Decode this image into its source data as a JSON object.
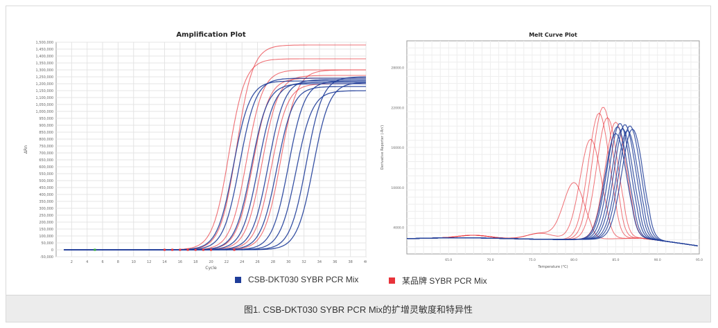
{
  "colors": {
    "blue": "#1f3d99",
    "red": "#e8333a",
    "grid": "#e4e4e4",
    "axis": "#9a9a9a",
    "caption_bg": "#ececec"
  },
  "legend": {
    "blue_label": "CSB-DKT030 SYBR PCR Mix",
    "red_label": "某品牌 SYBR PCR Mix"
  },
  "caption": "图1. CSB-DKT030 SYBR PCR Mix的扩增灵敏度和特异性",
  "chart_data": [
    {
      "type": "line",
      "title": "Amplification Plot",
      "xlabel": "Cycle",
      "ylabel": "ΔRn",
      "xlim": [
        0,
        40
      ],
      "ylim": [
        -50000,
        1500000
      ],
      "x_ticks": [
        2,
        4,
        6,
        8,
        10,
        12,
        14,
        16,
        18,
        20,
        22,
        24,
        26,
        28,
        30,
        32,
        34,
        36,
        38,
        40
      ],
      "y_ticks": [
        -50000,
        0,
        50000,
        100000,
        150000,
        200000,
        250000,
        300000,
        350000,
        400000,
        450000,
        500000,
        550000,
        600000,
        650000,
        700000,
        750000,
        800000,
        850000,
        900000,
        950000,
        1000000,
        1050000,
        1100000,
        1150000,
        1200000,
        1250000,
        1300000,
        1350000,
        1400000,
        1450000,
        1500000
      ],
      "grid": true,
      "series": [
        {
          "color": "red",
          "ct": 22.3,
          "plateau": 1380000
        },
        {
          "color": "red",
          "ct": 23.3,
          "plateau": 1480000
        },
        {
          "color": "red",
          "ct": 24.6,
          "plateau": 1300000
        },
        {
          "color": "red",
          "ct": 25.4,
          "plateau": 1240000
        },
        {
          "color": "red",
          "ct": 26.6,
          "plateau": 1260000
        },
        {
          "color": "red",
          "ct": 27.8,
          "plateau": 1200000
        },
        {
          "color": "red",
          "ct": 29.0,
          "plateau": 1300000
        },
        {
          "color": "blue",
          "ct": 22.9,
          "plateau": 1220000
        },
        {
          "color": "blue",
          "ct": 23.7,
          "plateau": 1240000
        },
        {
          "color": "blue",
          "ct": 25.2,
          "plateau": 1200000
        },
        {
          "color": "blue",
          "ct": 26.1,
          "plateau": 1210000
        },
        {
          "color": "blue",
          "ct": 27.4,
          "plateau": 1230000
        },
        {
          "color": "blue",
          "ct": 28.5,
          "plateau": 1180000
        },
        {
          "color": "blue",
          "ct": 30.0,
          "plateau": 1220000
        },
        {
          "color": "blue",
          "ct": 31.0,
          "plateau": 1150000
        },
        {
          "color": "blue",
          "ct": 32.3,
          "plateau": 1250000
        },
        {
          "color": "blue",
          "ct": 33.2,
          "plateau": 1210000
        }
      ],
      "markers": {
        "red_cycles": [
          14,
          15,
          16,
          17,
          18,
          19,
          20,
          23
        ],
        "green_cycles": [
          5
        ]
      }
    },
    {
      "type": "line",
      "title": "Melt Curve Plot",
      "xlabel": "Temperature (°C)",
      "ylabel": "Derivative Reporter (-Rn')",
      "xlim": [
        60,
        95
      ],
      "ylim": [
        0,
        32000
      ],
      "x_ticks": [
        65.0,
        70.0,
        75.0,
        80.0,
        85.0,
        90.0,
        95.0
      ],
      "y_ticks": [
        4000.0,
        10000.0,
        16000.0,
        22000.0,
        28000.0
      ],
      "grid": true,
      "series": [
        {
          "color": "blue",
          "peak_temp": 85.2,
          "peak": 16800
        },
        {
          "color": "blue",
          "peak_temp": 85.5,
          "peak": 17300
        },
        {
          "color": "blue",
          "peak_temp": 85.8,
          "peak": 16500
        },
        {
          "color": "blue",
          "peak_temp": 86.1,
          "peak": 17100
        },
        {
          "color": "blue",
          "peak_temp": 86.4,
          "peak": 16200
        },
        {
          "color": "blue",
          "peak_temp": 86.7,
          "peak": 16900
        },
        {
          "color": "blue",
          "peak_temp": 87.0,
          "peak": 16400
        },
        {
          "color": "blue",
          "peak_temp": 85.0,
          "peak": 15800
        },
        {
          "color": "red",
          "peak_temp": 83.5,
          "peak": 19800
        },
        {
          "color": "red",
          "peak_temp": 83.0,
          "peak": 18900
        },
        {
          "color": "red",
          "peak_temp": 84.0,
          "peak": 18200
        },
        {
          "color": "red",
          "peak_temp": 85.0,
          "peak": 17500
        },
        {
          "color": "red",
          "peak_temp": 82.0,
          "peak": 15000
        },
        {
          "color": "red",
          "peak_temp": 80.0,
          "peak": 8500
        }
      ]
    }
  ]
}
